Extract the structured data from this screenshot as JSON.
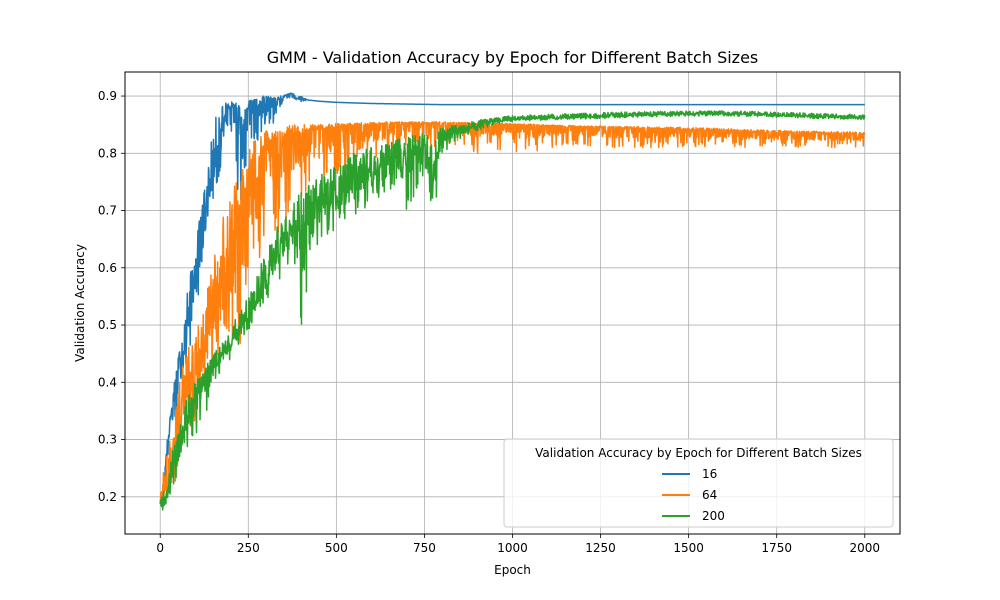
{
  "chart_data": {
    "type": "line",
    "title": "GMM - Validation Accuracy by Epoch for Different Batch Sizes",
    "xlabel": "Epoch",
    "ylabel": "Validation Accuracy",
    "xlim": [
      -100,
      2100
    ],
    "ylim": [
      0.135,
      0.942
    ],
    "xticks": [
      0,
      250,
      500,
      750,
      1000,
      1250,
      1500,
      1750,
      2000
    ],
    "yticks": [
      0.2,
      0.3,
      0.4,
      0.5,
      0.6,
      0.7,
      0.8,
      0.9
    ],
    "grid": true,
    "legend": {
      "title": "Validation Accuracy by Epoch for Different Batch Sizes",
      "placement": "lower-right"
    },
    "series": [
      {
        "name": "16",
        "color": "#1f77b4",
        "x": [
          0,
          10,
          20,
          30,
          40,
          50,
          60,
          70,
          80,
          90,
          100,
          110,
          120,
          130,
          140,
          150,
          160,
          170,
          180,
          190,
          200,
          210,
          220,
          230,
          240,
          250,
          260,
          270,
          280,
          290,
          300,
          310,
          320,
          330,
          340,
          350,
          360,
          370,
          380,
          390,
          400,
          420,
          450,
          500,
          600,
          700,
          800,
          900,
          1000,
          1200,
          1400,
          1600,
          1800,
          2000
        ],
        "y": [
          0.19,
          0.22,
          0.29,
          0.34,
          0.38,
          0.41,
          0.44,
          0.47,
          0.52,
          0.55,
          0.59,
          0.63,
          0.66,
          0.7,
          0.74,
          0.78,
          0.81,
          0.84,
          0.85,
          0.87,
          0.88,
          0.88,
          0.87,
          0.85,
          0.86,
          0.88,
          0.89,
          0.89,
          0.88,
          0.89,
          0.9,
          0.89,
          0.89,
          0.895,
          0.9,
          0.9,
          0.9,
          0.905,
          0.9,
          0.895,
          0.895,
          0.893,
          0.891,
          0.889,
          0.887,
          0.886,
          0.885,
          0.885,
          0.885,
          0.885,
          0.885,
          0.885,
          0.885,
          0.885
        ],
        "lower": [
          0.19,
          0.2,
          0.23,
          0.28,
          0.32,
          0.35,
          0.38,
          0.4,
          0.44,
          0.47,
          0.52,
          0.56,
          0.6,
          0.63,
          0.68,
          0.7,
          0.72,
          0.76,
          0.78,
          0.8,
          0.82,
          0.82,
          0.73,
          0.69,
          0.76,
          0.8,
          0.82,
          0.7,
          0.79,
          0.83,
          0.86,
          0.84,
          0.85,
          0.87,
          0.88,
          0.88,
          0.89,
          0.89,
          0.89,
          0.89,
          0.89,
          0.893,
          0.891,
          0.889,
          0.887,
          0.886,
          0.885,
          0.885,
          0.885,
          0.885,
          0.885,
          0.885,
          0.885,
          0.885
        ],
        "upper": [
          0.2,
          0.23,
          0.3,
          0.35,
          0.4,
          0.44,
          0.48,
          0.52,
          0.58,
          0.6,
          0.64,
          0.68,
          0.72,
          0.76,
          0.8,
          0.84,
          0.87,
          0.88,
          0.89,
          0.89,
          0.89,
          0.89,
          0.89,
          0.88,
          0.88,
          0.89,
          0.895,
          0.895,
          0.895,
          0.9,
          0.9,
          0.9,
          0.9,
          0.9,
          0.9,
          0.9,
          0.905,
          0.905,
          0.905,
          0.9,
          0.9,
          0.893,
          0.891,
          0.889,
          0.887,
          0.886,
          0.885,
          0.885,
          0.885,
          0.885,
          0.885,
          0.885,
          0.885,
          0.885
        ]
      },
      {
        "name": "64",
        "color": "#ff7f0e",
        "x": [
          0,
          20,
          40,
          60,
          80,
          100,
          120,
          140,
          160,
          180,
          200,
          220,
          240,
          260,
          280,
          300,
          320,
          340,
          360,
          380,
          400,
          450,
          500,
          550,
          600,
          650,
          700,
          750,
          800,
          850,
          900,
          950,
          1000,
          1050,
          1100,
          1150,
          1200,
          1300,
          1400,
          1500,
          1600,
          1700,
          1800,
          1900,
          2000
        ],
        "y": [
          0.19,
          0.22,
          0.27,
          0.33,
          0.38,
          0.41,
          0.44,
          0.5,
          0.55,
          0.6,
          0.65,
          0.69,
          0.73,
          0.76,
          0.78,
          0.8,
          0.81,
          0.82,
          0.83,
          0.83,
          0.835,
          0.84,
          0.845,
          0.848,
          0.85,
          0.85,
          0.852,
          0.852,
          0.852,
          0.852,
          0.851,
          0.85,
          0.849,
          0.848,
          0.847,
          0.846,
          0.845,
          0.844,
          0.843,
          0.841,
          0.839,
          0.837,
          0.835,
          0.834,
          0.833
        ],
        "lower": [
          0.19,
          0.2,
          0.22,
          0.25,
          0.28,
          0.33,
          0.38,
          0.4,
          0.42,
          0.44,
          0.47,
          0.3,
          0.55,
          0.58,
          0.6,
          0.62,
          0.64,
          0.66,
          0.68,
          0.7,
          0.72,
          0.74,
          0.76,
          0.78,
          0.79,
          0.8,
          0.8,
          0.81,
          0.81,
          0.81,
          0.8,
          0.8,
          0.8,
          0.8,
          0.81,
          0.81,
          0.81,
          0.81,
          0.81,
          0.81,
          0.81,
          0.81,
          0.81,
          0.81,
          0.81
        ],
        "upper": [
          0.2,
          0.3,
          0.35,
          0.42,
          0.46,
          0.5,
          0.52,
          0.58,
          0.64,
          0.7,
          0.74,
          0.76,
          0.8,
          0.82,
          0.83,
          0.84,
          0.845,
          0.845,
          0.85,
          0.85,
          0.85,
          0.85,
          0.852,
          0.853,
          0.854,
          0.855,
          0.855,
          0.855,
          0.855,
          0.854,
          0.853,
          0.853,
          0.852,
          0.851,
          0.85,
          0.849,
          0.848,
          0.847,
          0.846,
          0.845,
          0.843,
          0.841,
          0.839,
          0.838,
          0.837
        ]
      },
      {
        "name": "200",
        "color": "#2ca02c",
        "x": [
          0,
          20,
          40,
          60,
          80,
          100,
          120,
          140,
          160,
          180,
          200,
          220,
          240,
          260,
          280,
          300,
          320,
          340,
          360,
          380,
          400,
          450,
          500,
          550,
          600,
          650,
          700,
          750,
          770,
          800,
          850,
          900,
          950,
          1000,
          1100,
          1200,
          1300,
          1400,
          1500,
          1600,
          1700,
          1800,
          1900,
          2000
        ],
        "y": [
          0.18,
          0.21,
          0.26,
          0.3,
          0.34,
          0.37,
          0.4,
          0.42,
          0.44,
          0.45,
          0.47,
          0.49,
          0.51,
          0.53,
          0.55,
          0.58,
          0.61,
          0.63,
          0.65,
          0.67,
          0.69,
          0.71,
          0.73,
          0.75,
          0.77,
          0.79,
          0.8,
          0.81,
          0.75,
          0.83,
          0.84,
          0.85,
          0.855,
          0.86,
          0.862,
          0.864,
          0.866,
          0.868,
          0.869,
          0.869,
          0.868,
          0.866,
          0.864,
          0.863
        ],
        "lower": [
          0.17,
          0.19,
          0.22,
          0.26,
          0.28,
          0.3,
          0.32,
          0.36,
          0.4,
          0.42,
          0.44,
          0.46,
          0.48,
          0.5,
          0.52,
          0.54,
          0.56,
          0.58,
          0.6,
          0.62,
          0.46,
          0.64,
          0.67,
          0.69,
          0.71,
          0.73,
          0.7,
          0.76,
          0.65,
          0.8,
          0.82,
          0.84,
          0.85,
          0.855,
          0.858,
          0.86,
          0.862,
          0.864,
          0.865,
          0.865,
          0.864,
          0.862,
          0.86,
          0.859
        ],
        "upper": [
          0.2,
          0.23,
          0.3,
          0.34,
          0.38,
          0.4,
          0.42,
          0.44,
          0.46,
          0.47,
          0.49,
          0.52,
          0.54,
          0.57,
          0.6,
          0.63,
          0.66,
          0.68,
          0.7,
          0.72,
          0.74,
          0.76,
          0.78,
          0.8,
          0.81,
          0.82,
          0.83,
          0.835,
          0.83,
          0.845,
          0.85,
          0.858,
          0.862,
          0.866,
          0.868,
          0.87,
          0.872,
          0.873,
          0.874,
          0.874,
          0.873,
          0.871,
          0.869,
          0.868
        ]
      }
    ]
  }
}
